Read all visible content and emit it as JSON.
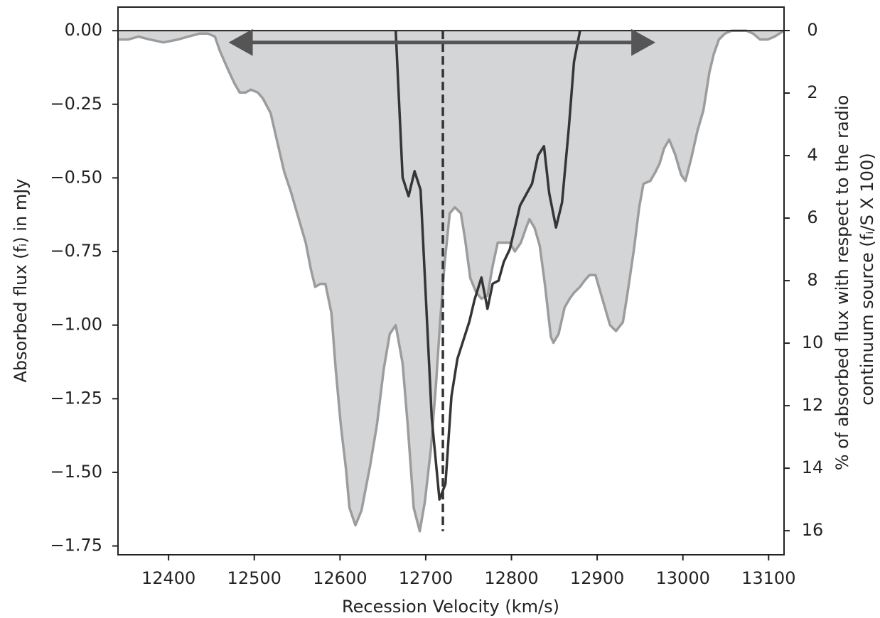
{
  "chart_data": {
    "type": "area",
    "xlabel": "Recession Velocity (km/s)",
    "ylabel": "Absorbed flux (fᵢ) in mJy",
    "y2label": [
      "% of absorbed flux with respect to the radio",
      "continuum source (fᵢ/S X 100)"
    ],
    "xlim": [
      12341,
      13118
    ],
    "ylim": [
      -1.78,
      0.08
    ],
    "y2lim": [
      16.77,
      -0.75
    ],
    "xticks": [
      12400,
      12500,
      12600,
      12700,
      12800,
      12900,
      13000,
      13100
    ],
    "yticks": [
      {
        "value": 0,
        "label": "0.00"
      },
      {
        "value": -0.25,
        "label": "−0.25"
      },
      {
        "value": -0.5,
        "label": "−0.50"
      },
      {
        "value": -0.75,
        "label": "−0.75"
      },
      {
        "value": -1,
        "label": "−1.00"
      },
      {
        "value": -1.25,
        "label": "−1.25"
      },
      {
        "value": -1.5,
        "label": "−1.50"
      },
      {
        "value": -1.75,
        "label": "−1.75"
      }
    ],
    "y2ticks": [
      0,
      2,
      4,
      6,
      8,
      10,
      12,
      14,
      16
    ],
    "series": [
      {
        "type": "area",
        "color": "#d4d5d7",
        "line_color": "#9c9c9c",
        "x": [
          12341,
          12353,
          12365,
          12378,
          12394,
          12411,
          12423,
          12436,
          12446,
          12454,
          12460,
          12469,
          12477,
          12483,
          12490,
          12496,
          12504,
          12510,
          12519,
          12527,
          12535,
          12543,
          12552,
          12560,
          12566,
          12571,
          12577,
          12583,
          12590,
          12595,
          12601,
          12607,
          12611,
          12618,
          12625,
          12635,
          12643,
          12651,
          12658,
          12665,
          12673,
          12679,
          12686,
          12693,
          12699,
          12706,
          12712,
          12717,
          12722,
          12728,
          12734,
          12741,
          12746,
          12752,
          12759,
          12765,
          12772,
          12778,
          12784,
          12791,
          12798,
          12804,
          12811,
          12817,
          12821,
          12827,
          12833,
          12839,
          12846,
          12849,
          12855,
          12862,
          12868,
          12873,
          12880,
          12885,
          12891,
          12898,
          12902,
          12908,
          12915,
          12922,
          12930,
          12935,
          12943,
          12949,
          12954,
          12962,
          12968,
          12973,
          12978,
          12984,
          12991,
          12998,
          13003,
          13010,
          13017,
          13024,
          13031,
          13036,
          13042,
          13049,
          13057,
          13065,
          13074,
          13082,
          13090,
          13099,
          13107,
          13118
        ],
        "values": [
          -0.03,
          -0.03,
          -0.02,
          -0.03,
          -0.04,
          -0.03,
          -0.02,
          -0.01,
          -0.01,
          -0.02,
          -0.07,
          -0.13,
          -0.18,
          -0.21,
          -0.21,
          -0.2,
          -0.21,
          -0.23,
          -0.28,
          -0.38,
          -0.48,
          -0.55,
          -0.64,
          -0.72,
          -0.81,
          -0.87,
          -0.86,
          -0.86,
          -0.96,
          -1.15,
          -1.34,
          -1.49,
          -1.62,
          -1.68,
          -1.63,
          -1.48,
          -1.34,
          -1.15,
          -1.03,
          -1.0,
          -1.13,
          -1.34,
          -1.62,
          -1.7,
          -1.6,
          -1.42,
          -1.2,
          -0.98,
          -0.79,
          -0.62,
          -0.6,
          -0.62,
          -0.71,
          -0.84,
          -0.89,
          -0.91,
          -0.9,
          -0.8,
          -0.72,
          -0.72,
          -0.72,
          -0.75,
          -0.72,
          -0.67,
          -0.64,
          -0.67,
          -0.73,
          -0.86,
          -1.04,
          -1.06,
          -1.03,
          -0.94,
          -0.91,
          -0.89,
          -0.87,
          -0.85,
          -0.83,
          -0.83,
          -0.87,
          -0.93,
          -1.0,
          -1.02,
          -0.99,
          -0.9,
          -0.74,
          -0.6,
          -0.52,
          -0.51,
          -0.48,
          -0.45,
          -0.4,
          -0.37,
          -0.42,
          -0.49,
          -0.51,
          -0.43,
          -0.34,
          -0.27,
          -0.14,
          -0.08,
          -0.03,
          -0.01,
          0,
          0,
          0,
          -0.01,
          -0.03,
          -0.03,
          -0.02,
          0
        ]
      },
      {
        "type": "line",
        "axis": "y2",
        "color": "#353535",
        "x": [
          12665,
          12673,
          12680,
          12687,
          12694,
          12707,
          12716,
          12723,
          12730,
          12737,
          12751,
          12757,
          12765,
          12772,
          12778,
          12785,
          12791,
          12798,
          12810,
          12824,
          12831,
          12838,
          12844,
          12852,
          12859,
          12867,
          12873,
          12880
        ],
        "values": [
          0,
          4.7,
          5.3,
          4.5,
          5.1,
          12.4,
          15.0,
          14.5,
          11.7,
          10.5,
          9.3,
          8.6,
          7.9,
          8.9,
          8.1,
          8.0,
          7.4,
          7.0,
          5.6,
          4.9,
          4.0,
          3.7,
          5.2,
          6.3,
          5.5,
          3.1,
          1.0,
          0
        ]
      }
    ],
    "zero_line": 0,
    "vline": {
      "x": 12720,
      "y": [
        0,
        -1.7
      ],
      "color": "#333333"
    },
    "arrow": {
      "x": [
        12470,
        12968
      ],
      "y": -0.04,
      "color": "#555555"
    }
  }
}
